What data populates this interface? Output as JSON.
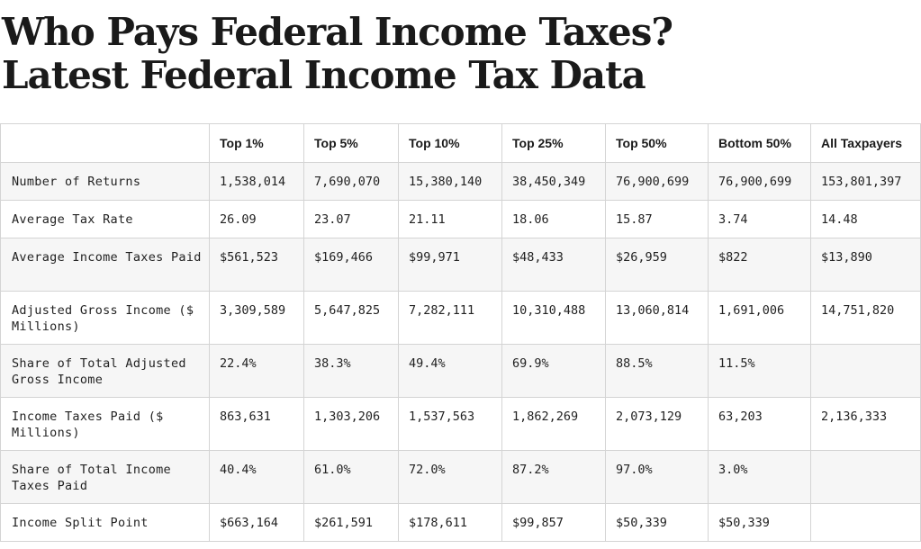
{
  "title": {
    "line1": "Who Pays Federal Income Taxes?",
    "line2": "Latest Federal Income Tax Data"
  },
  "table": {
    "headers": [
      "",
      "Top 1%",
      "Top 5%",
      "Top 10%",
      "Top 25%",
      "Top 50%",
      "Bottom 50%",
      "All Taxpayers"
    ],
    "rows": [
      {
        "label": "Number of Returns",
        "values": [
          "1,538,014",
          "7,690,070",
          "15,380,140",
          "38,450,349",
          "76,900,699",
          "76,900,699",
          "153,801,397"
        ]
      },
      {
        "label": "Average Tax Rate",
        "values": [
          "26.09",
          "23.07",
          "21.11",
          "18.06",
          "15.87",
          "3.74",
          "14.48"
        ]
      },
      {
        "label": "Average Income Taxes Paid",
        "values": [
          "$561,523",
          "$169,466",
          "$99,971",
          "$48,433",
          "$26,959",
          "$822",
          "$13,890"
        ]
      },
      {
        "label": "Adjusted Gross Income ($ Millions)",
        "values": [
          "3,309,589",
          "5,647,825",
          "7,282,111",
          "10,310,488",
          "13,060,814",
          "1,691,006",
          "14,751,820"
        ]
      },
      {
        "label": "Share of Total Adjusted Gross Income",
        "values": [
          "22.4%",
          "38.3%",
          "49.4%",
          "69.9%",
          "88.5%",
          "11.5%",
          ""
        ]
      },
      {
        "label": "Income Taxes Paid ($ Millions)",
        "values": [
          "863,631",
          "1,303,206",
          "1,537,563",
          "1,862,269",
          "2,073,129",
          "63,203",
          "2,136,333"
        ]
      },
      {
        "label": "Share of Total Income Taxes Paid",
        "values": [
          "40.4%",
          "61.0%",
          "72.0%",
          "87.2%",
          "97.0%",
          "3.0%",
          ""
        ]
      },
      {
        "label": "Income Split Point",
        "values": [
          "$663,164",
          "$261,591",
          "$178,611",
          "$99,857",
          "$50,339",
          "$50,339",
          ""
        ]
      }
    ]
  }
}
